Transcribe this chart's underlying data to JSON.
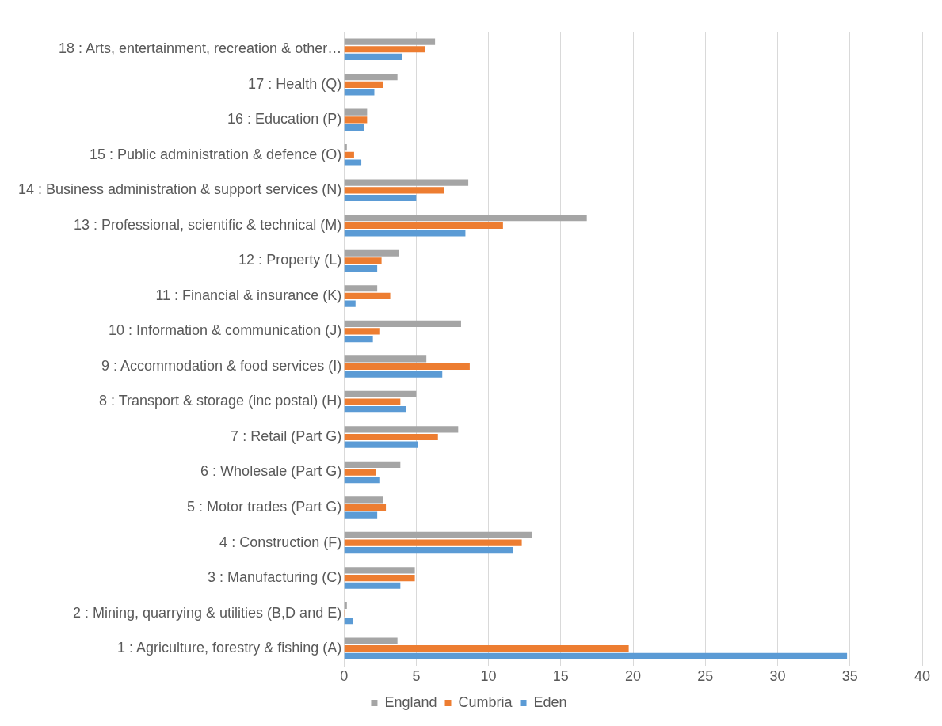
{
  "chart_data": {
    "type": "bar",
    "orientation": "horizontal",
    "categories": [
      "18 : Arts, entertainment, recreation & other…",
      "17 : Health (Q)",
      "16 : Education (P)",
      "15 : Public administration & defence (O)",
      "14 : Business administration & support services (N)",
      "13 : Professional, scientific & technical (M)",
      "12 : Property (L)",
      "11 : Financial & insurance (K)",
      "10 : Information & communication (J)",
      "9 : Accommodation & food services (I)",
      "8 : Transport & storage (inc postal) (H)",
      "7 : Retail (Part G)",
      "6 : Wholesale (Part G)",
      "5 : Motor trades (Part G)",
      "4 : Construction (F)",
      "3 : Manufacturing (C)",
      "2 : Mining, quarrying & utilities (B,D and E)",
      "1 : Agriculture, forestry & fishing (A)"
    ],
    "series": [
      {
        "name": "England",
        "color": "#a5a5a5",
        "values": [
          6.3,
          3.7,
          1.6,
          0.2,
          8.6,
          16.8,
          3.8,
          2.3,
          8.1,
          5.7,
          5.0,
          7.9,
          3.9,
          2.7,
          13.0,
          4.9,
          0.2,
          3.7
        ]
      },
      {
        "name": "Cumbria",
        "color": "#ed7d31",
        "values": [
          5.6,
          2.7,
          1.6,
          0.7,
          6.9,
          11.0,
          2.6,
          3.2,
          2.5,
          8.7,
          3.9,
          6.5,
          2.2,
          2.9,
          12.3,
          4.9,
          0.1,
          19.7
        ]
      },
      {
        "name": "Eden",
        "color": "#5b9bd5",
        "values": [
          4.0,
          2.1,
          1.4,
          1.2,
          5.0,
          8.4,
          2.3,
          0.8,
          2.0,
          6.8,
          4.3,
          5.1,
          2.5,
          2.3,
          11.7,
          3.9,
          0.6,
          34.8
        ]
      }
    ],
    "xlim": [
      0,
      40
    ],
    "xticks": [
      0,
      5,
      10,
      15,
      20,
      25,
      30,
      35,
      40
    ],
    "grid": "x",
    "legend": "bottom"
  }
}
